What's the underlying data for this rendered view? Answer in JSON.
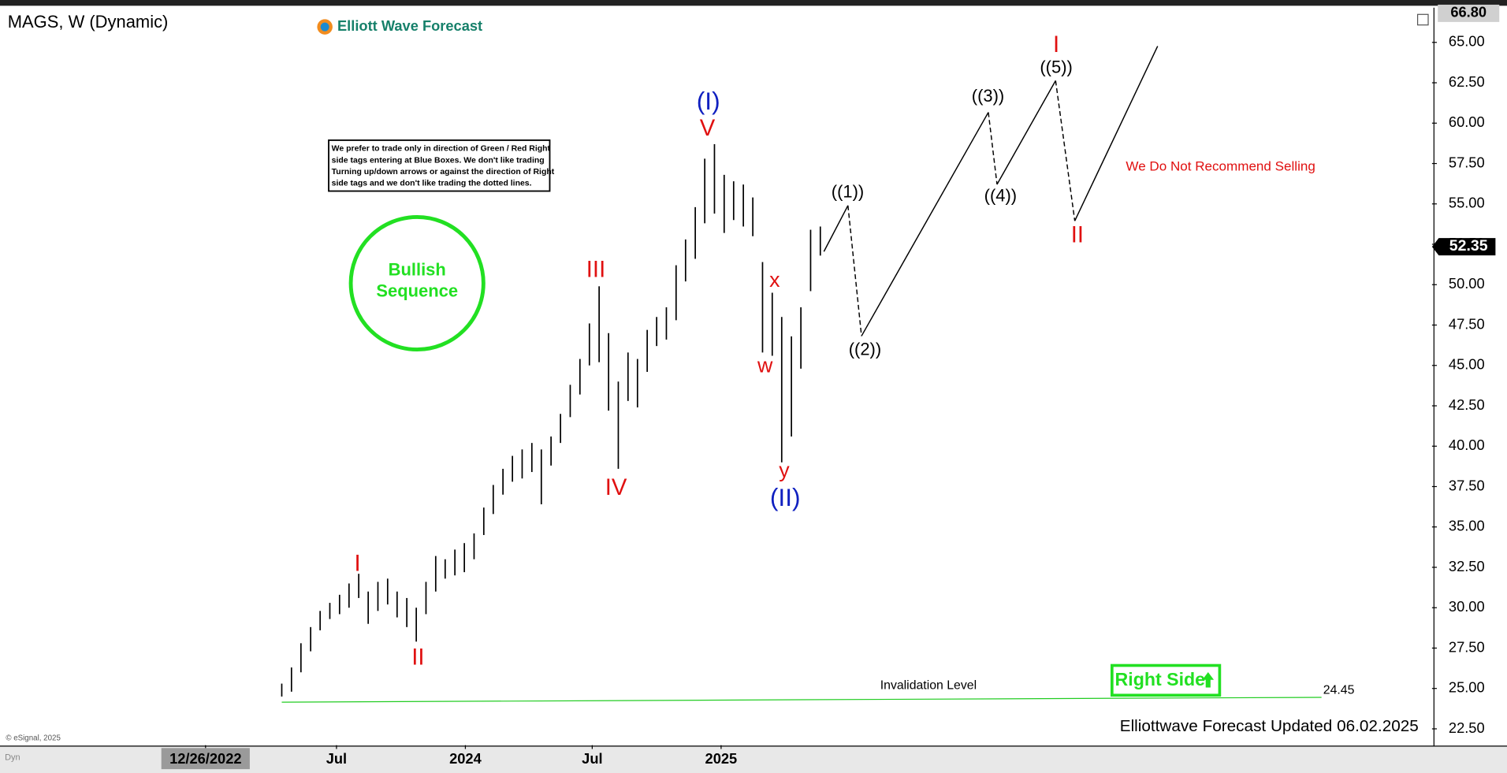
{
  "chart_data": {
    "type": "ohlc",
    "title": "MAGS, W (Dynamic)",
    "brand": "Elliott Wave Forecast",
    "note_lines": [
      "We prefer to trade only in direction of Green / Red Right",
      "side tags entering at Blue Boxes. We don't like trading",
      "Turning up/down arrows or against the direction of Right",
      "side tags and we don't like trading the dotted lines."
    ],
    "badge": "Bullish Sequence",
    "right_side": "Right Side",
    "footer": "Elliottwave Forecast Updated 06.02.2025",
    "copyright": "© eSignal, 2025",
    "corner": "Dyn",
    "color": "#000000",
    "x": [
      2023.282,
      2023.32,
      2023.357,
      2023.395,
      2023.432,
      2023.47,
      2023.508,
      2023.545,
      2023.583,
      2023.62,
      2023.658,
      2023.696,
      2023.733,
      2023.771,
      2023.808,
      2023.846,
      2023.884,
      2023.921,
      2023.959,
      2023.996,
      2024.034,
      2024.072,
      2024.109,
      2024.147,
      2024.184,
      2024.222,
      2024.26,
      2024.297,
      2024.335,
      2024.372,
      2024.41,
      2024.448,
      2024.485,
      2024.523,
      2024.56,
      2024.598,
      2024.636,
      2024.673,
      2024.711,
      2024.748,
      2024.786,
      2024.824,
      2024.861,
      2024.899,
      2024.936,
      2024.974,
      2025.012,
      2025.049,
      2025.087,
      2025.124,
      2025.162,
      2025.2,
      2025.237,
      2025.275,
      2025.312,
      2025.35,
      2025.388
    ],
    "high": [
      25.3,
      26.3,
      27.8,
      28.8,
      29.8,
      30.3,
      30.8,
      31.5,
      32.1,
      31.0,
      31.6,
      31.8,
      31.0,
      30.6,
      30.0,
      31.6,
      33.2,
      33.0,
      33.6,
      34.0,
      34.6,
      36.2,
      37.6,
      38.6,
      39.4,
      39.8,
      40.2,
      39.8,
      40.6,
      42.0,
      43.8,
      45.4,
      47.6,
      49.9,
      47.0,
      44.0,
      45.8,
      45.4,
      47.2,
      48.0,
      48.6,
      51.2,
      52.8,
      54.8,
      57.8,
      58.7,
      56.8,
      56.4,
      56.2,
      55.4,
      51.4,
      49.5,
      48.0,
      46.8,
      48.6,
      53.4,
      53.6
    ],
    "low": [
      24.5,
      24.8,
      26.0,
      27.3,
      28.6,
      29.3,
      29.6,
      30.0,
      30.6,
      29.0,
      29.8,
      30.2,
      29.4,
      28.8,
      27.9,
      29.6,
      31.0,
      31.8,
      32.0,
      32.2,
      33.0,
      34.5,
      35.8,
      37.0,
      37.8,
      38.0,
      38.4,
      36.4,
      38.8,
      40.2,
      41.8,
      43.2,
      45.0,
      45.2,
      42.2,
      38.6,
      42.8,
      42.4,
      44.6,
      46.2,
      46.6,
      47.8,
      50.2,
      51.6,
      53.8,
      54.4,
      53.2,
      54.0,
      53.6,
      53.0,
      45.8,
      45.6,
      39.0,
      40.6,
      44.8,
      49.6,
      51.8
    ],
    "last_price": 52.35,
    "top_marker": {
      "value": 66.8,
      "label": "66.80"
    },
    "projection": {
      "x": [
        2025.402,
        2025.496,
        2025.549,
        2026.045,
        2026.079,
        2026.308,
        2026.383,
        2026.707
      ],
      "values": [
        52.05,
        54.9,
        46.82,
        60.67,
        56.21,
        62.63,
        53.95,
        64.77
      ],
      "segment_styles": [
        "solid",
        "dashed",
        "solid",
        "dashed",
        "solid",
        "dashed",
        "solid"
      ],
      "color": "#000000"
    },
    "invalidation": {
      "label": "Invalidation Level",
      "value": 24.45,
      "color": "#22cc22"
    },
    "annotations": [
      {
        "text": "I",
        "color": "#e01010"
      },
      {
        "text": "II",
        "color": "#e01010"
      },
      {
        "text": "III",
        "color": "#e01010"
      },
      {
        "text": "IV",
        "color": "#e01010"
      },
      {
        "text": "V",
        "color": "#e01010"
      },
      {
        "text": "(I)",
        "color": "#1020c0"
      },
      {
        "text": "x",
        "color": "#e01010"
      },
      {
        "text": "w",
        "color": "#e01010"
      },
      {
        "text": "y",
        "color": "#e01010"
      },
      {
        "text": "(II)",
        "color": "#1020c0"
      },
      {
        "text": "((1))",
        "color": "#000000"
      },
      {
        "text": "((2))",
        "color": "#000000"
      },
      {
        "text": "((3))",
        "color": "#000000"
      },
      {
        "text": "((4))",
        "color": "#000000"
      },
      {
        "text": "((5))",
        "color": "#000000"
      },
      {
        "text": "I",
        "color": "#e01010"
      },
      {
        "text": "II",
        "color": "#e01010"
      },
      {
        "text": "We Do Not Recommend Selling",
        "color": "#e01010"
      }
    ],
    "xlim": [
      2022.199,
      2027.78
    ],
    "xticks": [
      {
        "value": 2022.984,
        "label": "12/26/2022"
      },
      {
        "value": 2023.496,
        "label": "Jul"
      },
      2024,
      {
        "value": 2024.496,
        "label": "Jul"
      },
      2025
    ],
    "ylim": [
      21.49,
      67.03
    ],
    "yticks": [
      {
        "value": 22.5,
        "label": "22.50"
      },
      {
        "value": 25,
        "label": "25.00"
      },
      {
        "value": 27.5,
        "label": "27.50"
      },
      {
        "value": 30,
        "label": "30.00"
      },
      {
        "value": 32.5,
        "label": "32.50"
      },
      {
        "value": 35,
        "label": "35.00"
      },
      {
        "value": 37.5,
        "label": "37.50"
      },
      {
        "value": 40,
        "label": "40.00"
      },
      {
        "value": 42.5,
        "label": "42.50"
      },
      {
        "value": 45,
        "label": "45.00"
      },
      {
        "value": 47.5,
        "label": "47.50"
      },
      {
        "value": 50,
        "label": "50.00"
      },
      {
        "value": 52.5,
        "label": "52.50"
      },
      {
        "value": 55,
        "label": "55.00"
      },
      {
        "value": 57.5,
        "label": "57.50"
      },
      {
        "value": 60,
        "label": "60.00"
      },
      {
        "value": 62.5,
        "label": "62.50"
      },
      {
        "value": 65,
        "label": "65.00"
      }
    ]
  }
}
